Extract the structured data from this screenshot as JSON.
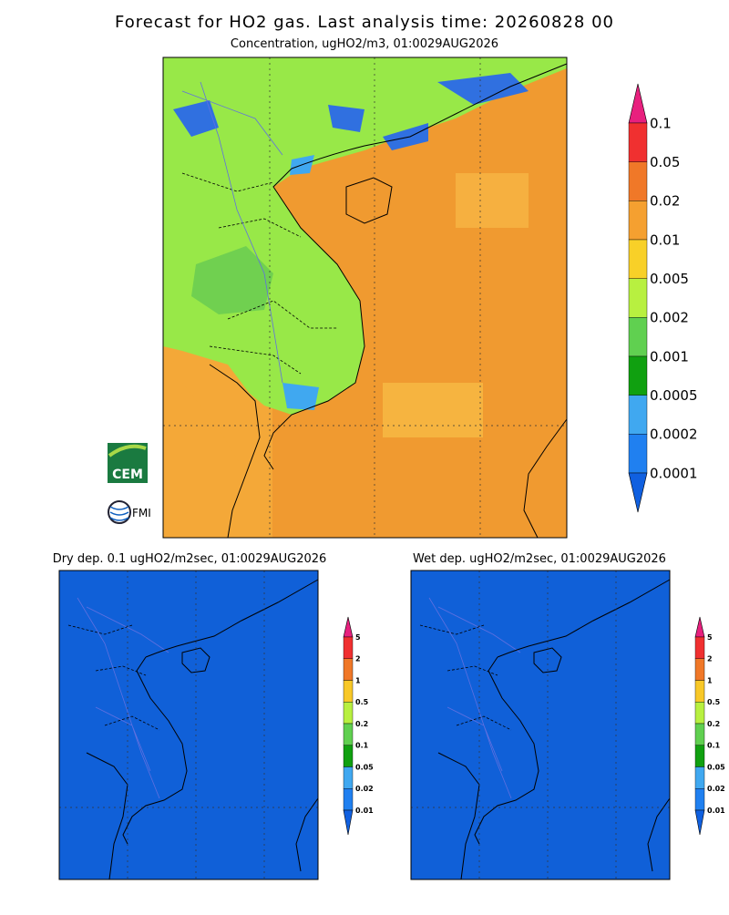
{
  "title": "Forecast for HO2 gas. Last analysis time: 20260828 00",
  "main_panel": {
    "subtitle": "Concentration, ugHO2/m3, 01:0029AUG2026",
    "colorbar": {
      "labels": [
        "0.1",
        "0.05",
        "0.02",
        "0.01",
        "0.005",
        "0.002",
        "0.001",
        "0.0005",
        "0.0002",
        "0.0001"
      ],
      "colors": [
        "#e8207e",
        "#f03030",
        "#f07828",
        "#f5a030",
        "#f8d028",
        "#b8f040",
        "#60d050",
        "#10a010",
        "#40a8f0",
        "#2080f0",
        "#1060e0"
      ]
    }
  },
  "dry_panel": {
    "title": "Dry dep. 0.1 ugHO2/m2sec, 01:0029AUG2026",
    "colorbar": {
      "labels": [
        "5",
        "2",
        "1",
        "0.5",
        "0.2",
        "0.1",
        "0.05",
        "0.02",
        "0.01"
      ],
      "colors": [
        "#e8207e",
        "#f03030",
        "#f07828",
        "#f8c828",
        "#b8f040",
        "#60d050",
        "#10a010",
        "#40a8f0",
        "#2080f0",
        "#1060e0"
      ]
    }
  },
  "wet_panel": {
    "title": "Wet dep. ugHO2/m2sec, 01:0029AUG2026",
    "colorbar": {
      "labels": [
        "5",
        "2",
        "1",
        "0.5",
        "0.2",
        "0.1",
        "0.05",
        "0.02",
        "0.01"
      ],
      "colors": [
        "#e8207e",
        "#f03030",
        "#f07828",
        "#f8c828",
        "#b8f040",
        "#60d050",
        "#10a010",
        "#40a8f0",
        "#2080f0",
        "#1060e0"
      ]
    }
  },
  "logos": [
    "CEM",
    "FMI"
  ]
}
